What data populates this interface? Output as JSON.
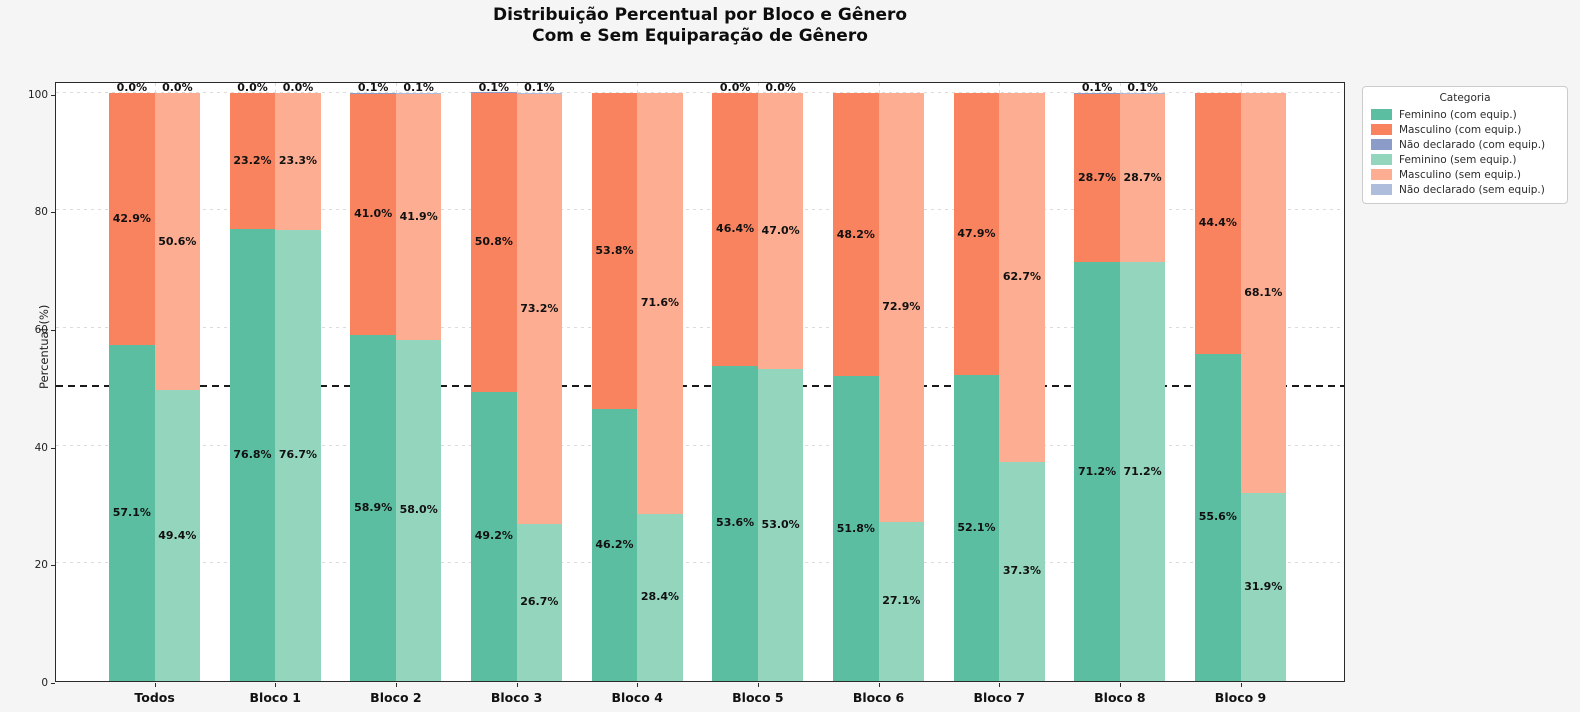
{
  "colors": {
    "figure_bg": "#f5f5f5",
    "plot_bg": "#ffffff",
    "axis": "#2a2a2a",
    "grid": "#dcdcdc",
    "reference_line": "#1a1a1a",
    "label_text": "#111111"
  },
  "chart_data": {
    "type": "bar",
    "stacked": true,
    "grouped": true,
    "title": "Distribuição Percentual por Bloco e Gênero",
    "subtitle": "Com e Sem Equiparação de Gênero",
    "xlabel": "",
    "ylabel": "Percentual (%)",
    "ylim": [
      0,
      100
    ],
    "yticks": [
      0,
      20,
      40,
      60,
      80,
      100
    ],
    "grid": true,
    "reference_line_y": 50,
    "legend_title": "Categoria",
    "legend_position": "outside upper right",
    "categories": [
      "Todos",
      "Bloco 1",
      "Bloco 2",
      "Bloco 3",
      "Bloco 4",
      "Bloco 5",
      "Bloco 6",
      "Bloco 7",
      "Bloco 8",
      "Bloco 9"
    ],
    "groups": [
      "com",
      "sem"
    ],
    "series": [
      {
        "name": "Feminino (com equip.)",
        "group": "com",
        "stack_order": 0,
        "color": "#5cbea0",
        "values": [
          57.1,
          76.8,
          58.9,
          49.2,
          46.2,
          53.6,
          51.8,
          52.1,
          71.2,
          55.6
        ],
        "labels": [
          "57.1%",
          "76.8%",
          "58.9%",
          "49.2%",
          "46.2%",
          "53.6%",
          "51.8%",
          "52.1%",
          "71.2%",
          "55.6%"
        ]
      },
      {
        "name": "Masculino (com equip.)",
        "group": "com",
        "stack_order": 1,
        "color": "#f9835f",
        "values": [
          42.9,
          23.2,
          41.0,
          50.8,
          53.8,
          46.4,
          48.2,
          47.9,
          28.7,
          44.4
        ],
        "labels": [
          "42.9%",
          "23.2%",
          "41.0%",
          "50.8%",
          "53.8%",
          "46.4%",
          "48.2%",
          "47.9%",
          "28.7%",
          "44.4%"
        ]
      },
      {
        "name": "Não declarado (com equip.)",
        "group": "com",
        "stack_order": 2,
        "color": "#8b9cc8",
        "values": [
          0.0,
          0.0,
          0.1,
          0.1,
          0.0,
          0.0,
          0.0,
          0.0,
          0.1,
          0.0
        ],
        "labels": [
          "0.0%",
          "0.0%",
          "0.1%",
          "0.1%",
          null,
          "0.0%",
          null,
          null,
          "0.1%",
          null
        ]
      },
      {
        "name": "Feminino (sem equip.)",
        "group": "sem",
        "stack_order": 0,
        "color": "#94d5bd",
        "values": [
          49.4,
          76.7,
          58.0,
          26.7,
          28.4,
          53.0,
          27.1,
          37.3,
          71.2,
          31.9
        ],
        "labels": [
          "49.4%",
          "76.7%",
          "58.0%",
          "26.7%",
          "28.4%",
          "53.0%",
          "27.1%",
          "37.3%",
          "71.2%",
          "31.9%"
        ]
      },
      {
        "name": "Masculino (sem equip.)",
        "group": "sem",
        "stack_order": 1,
        "color": "#fcad92",
        "values": [
          50.6,
          23.3,
          41.9,
          73.2,
          71.6,
          47.0,
          72.9,
          62.7,
          28.7,
          68.1
        ],
        "labels": [
          "50.6%",
          "23.3%",
          "41.9%",
          "73.2%",
          "71.6%",
          "47.0%",
          "72.9%",
          "62.7%",
          "28.7%",
          "68.1%"
        ]
      },
      {
        "name": "Não declarado (sem equip.)",
        "group": "sem",
        "stack_order": 2,
        "color": "#aebddb",
        "values": [
          0.0,
          0.0,
          0.1,
          0.1,
          0.0,
          0.0,
          0.0,
          0.0,
          0.1,
          0.0
        ],
        "labels": [
          "0.0%",
          "0.0%",
          "0.1%",
          "0.1%",
          null,
          "0.0%",
          null,
          null,
          "0.1%",
          null
        ]
      }
    ]
  }
}
